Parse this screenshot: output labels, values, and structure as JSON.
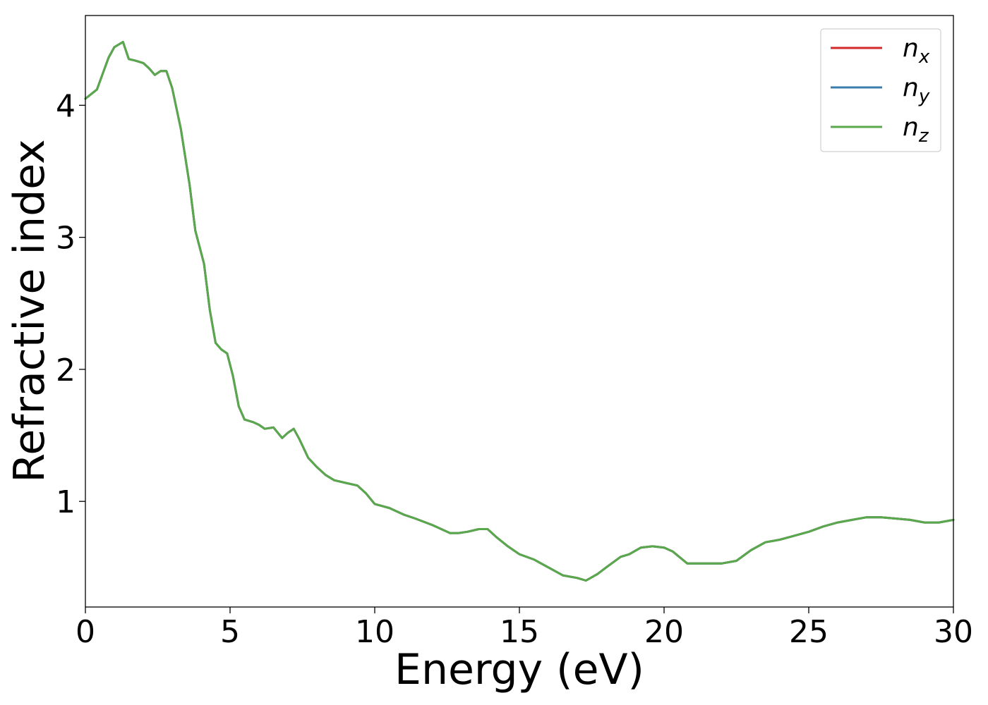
{
  "chart_data": {
    "type": "line",
    "xlabel": "Energy (eV)",
    "ylabel": "Refractive index",
    "xlim": [
      0,
      30
    ],
    "ylim": [
      0.2,
      4.68
    ],
    "xticks": [
      0,
      5,
      10,
      15,
      20,
      25,
      30
    ],
    "yticks": [
      1,
      2,
      3,
      4
    ],
    "grid": false,
    "legend_position": "top-right",
    "colors": {
      "nx": "#d62728",
      "ny": "#3a7dac",
      "nz": "#59a84b"
    },
    "series": [
      {
        "name": "n_x",
        "name_base": "n",
        "name_sub": "x",
        "x": [
          0,
          0.4,
          0.8,
          1.0,
          1.3,
          1.5,
          1.7,
          2.0,
          2.2,
          2.4,
          2.6,
          2.8,
          3.0,
          3.3,
          3.6,
          3.8,
          4.1,
          4.3,
          4.5,
          4.7,
          4.9,
          5.1,
          5.3,
          5.5,
          5.8,
          6.0,
          6.2,
          6.5,
          6.8,
          7.0,
          7.2,
          7.4,
          7.7,
          8.0,
          8.3,
          8.6,
          9.0,
          9.4,
          9.7,
          10.0,
          10.5,
          11.0,
          11.4,
          12.0,
          12.6,
          12.9,
          13.2,
          13.6,
          13.9,
          14.2,
          14.6,
          15.0,
          15.5,
          16.0,
          16.5,
          17.0,
          17.3,
          17.7,
          18.0,
          18.5,
          18.8,
          19.2,
          19.6,
          20.0,
          20.3,
          20.8,
          21.2,
          22.0,
          22.5,
          23.0,
          23.5,
          24.0,
          24.5,
          25.0,
          25.5,
          26.0,
          26.5,
          27.0,
          27.5,
          28.0,
          28.5,
          29.0,
          29.5,
          30.0
        ],
        "values": [
          4.05,
          4.12,
          4.36,
          4.44,
          4.48,
          4.35,
          4.34,
          4.32,
          4.28,
          4.23,
          4.26,
          4.26,
          4.13,
          3.82,
          3.4,
          3.05,
          2.8,
          2.45,
          2.2,
          2.15,
          2.12,
          1.95,
          1.72,
          1.62,
          1.6,
          1.58,
          1.55,
          1.56,
          1.48,
          1.52,
          1.55,
          1.47,
          1.33,
          1.26,
          1.2,
          1.16,
          1.14,
          1.12,
          1.06,
          0.98,
          0.95,
          0.9,
          0.87,
          0.82,
          0.76,
          0.76,
          0.77,
          0.79,
          0.79,
          0.73,
          0.66,
          0.6,
          0.56,
          0.5,
          0.44,
          0.42,
          0.4,
          0.45,
          0.5,
          0.58,
          0.6,
          0.65,
          0.66,
          0.65,
          0.62,
          0.53,
          0.53,
          0.53,
          0.55,
          0.63,
          0.69,
          0.71,
          0.74,
          0.77,
          0.81,
          0.84,
          0.86,
          0.88,
          0.88,
          0.87,
          0.86,
          0.84,
          0.84,
          0.86
        ]
      },
      {
        "name": "n_y",
        "name_base": "n",
        "name_sub": "y",
        "x": [
          0,
          0.4,
          0.8,
          1.0,
          1.3,
          1.5,
          1.7,
          2.0,
          2.2,
          2.4,
          2.6,
          2.8,
          3.0,
          3.3,
          3.6,
          3.8,
          4.1,
          4.3,
          4.5,
          4.7,
          4.9,
          5.1,
          5.3,
          5.5,
          5.8,
          6.0,
          6.2,
          6.5,
          6.8,
          7.0,
          7.2,
          7.4,
          7.7,
          8.0,
          8.3,
          8.6,
          9.0,
          9.4,
          9.7,
          10.0,
          10.5,
          11.0,
          11.4,
          12.0,
          12.6,
          12.9,
          13.2,
          13.6,
          13.9,
          14.2,
          14.6,
          15.0,
          15.5,
          16.0,
          16.5,
          17.0,
          17.3,
          17.7,
          18.0,
          18.5,
          18.8,
          19.2,
          19.6,
          20.0,
          20.3,
          20.8,
          21.2,
          22.0,
          22.5,
          23.0,
          23.5,
          24.0,
          24.5,
          25.0,
          25.5,
          26.0,
          26.5,
          27.0,
          27.5,
          28.0,
          28.5,
          29.0,
          29.5,
          30.0
        ],
        "values": [
          4.05,
          4.12,
          4.36,
          4.44,
          4.48,
          4.35,
          4.34,
          4.32,
          4.28,
          4.23,
          4.26,
          4.26,
          4.13,
          3.82,
          3.4,
          3.05,
          2.8,
          2.45,
          2.2,
          2.15,
          2.12,
          1.95,
          1.72,
          1.62,
          1.6,
          1.58,
          1.55,
          1.56,
          1.48,
          1.52,
          1.55,
          1.47,
          1.33,
          1.26,
          1.2,
          1.16,
          1.14,
          1.12,
          1.06,
          0.98,
          0.95,
          0.9,
          0.87,
          0.82,
          0.76,
          0.76,
          0.77,
          0.79,
          0.79,
          0.73,
          0.66,
          0.6,
          0.56,
          0.5,
          0.44,
          0.42,
          0.4,
          0.45,
          0.5,
          0.58,
          0.6,
          0.65,
          0.66,
          0.65,
          0.62,
          0.53,
          0.53,
          0.53,
          0.55,
          0.63,
          0.69,
          0.71,
          0.74,
          0.77,
          0.81,
          0.84,
          0.86,
          0.88,
          0.88,
          0.87,
          0.86,
          0.84,
          0.84,
          0.86
        ]
      },
      {
        "name": "n_z",
        "name_base": "n",
        "name_sub": "z",
        "x": [
          0,
          0.4,
          0.8,
          1.0,
          1.3,
          1.5,
          1.7,
          2.0,
          2.2,
          2.4,
          2.6,
          2.8,
          3.0,
          3.3,
          3.6,
          3.8,
          4.1,
          4.3,
          4.5,
          4.7,
          4.9,
          5.1,
          5.3,
          5.5,
          5.8,
          6.0,
          6.2,
          6.5,
          6.8,
          7.0,
          7.2,
          7.4,
          7.7,
          8.0,
          8.3,
          8.6,
          9.0,
          9.4,
          9.7,
          10.0,
          10.5,
          11.0,
          11.4,
          12.0,
          12.6,
          12.9,
          13.2,
          13.6,
          13.9,
          14.2,
          14.6,
          15.0,
          15.5,
          16.0,
          16.5,
          17.0,
          17.3,
          17.7,
          18.0,
          18.5,
          18.8,
          19.2,
          19.6,
          20.0,
          20.3,
          20.8,
          21.2,
          22.0,
          22.5,
          23.0,
          23.5,
          24.0,
          24.5,
          25.0,
          25.5,
          26.0,
          26.5,
          27.0,
          27.5,
          28.0,
          28.5,
          29.0,
          29.5,
          30.0
        ],
        "values": [
          4.05,
          4.12,
          4.36,
          4.44,
          4.48,
          4.35,
          4.34,
          4.32,
          4.28,
          4.23,
          4.26,
          4.26,
          4.13,
          3.82,
          3.4,
          3.05,
          2.8,
          2.45,
          2.2,
          2.15,
          2.12,
          1.95,
          1.72,
          1.62,
          1.6,
          1.58,
          1.55,
          1.56,
          1.48,
          1.52,
          1.55,
          1.47,
          1.33,
          1.26,
          1.2,
          1.16,
          1.14,
          1.12,
          1.06,
          0.98,
          0.95,
          0.9,
          0.87,
          0.82,
          0.76,
          0.76,
          0.77,
          0.79,
          0.79,
          0.73,
          0.66,
          0.6,
          0.56,
          0.5,
          0.44,
          0.42,
          0.4,
          0.45,
          0.5,
          0.58,
          0.6,
          0.65,
          0.66,
          0.65,
          0.62,
          0.53,
          0.53,
          0.53,
          0.55,
          0.63,
          0.69,
          0.71,
          0.74,
          0.77,
          0.81,
          0.84,
          0.86,
          0.88,
          0.88,
          0.87,
          0.86,
          0.84,
          0.84,
          0.86
        ]
      }
    ]
  }
}
